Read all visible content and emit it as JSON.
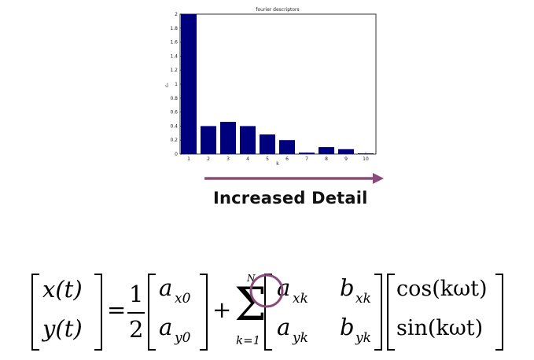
{
  "chart_data": {
    "type": "bar",
    "title": "fourier descriptors",
    "xlabel": "k",
    "ylabel": "cₖ",
    "categories": [
      "1",
      "2",
      "3",
      "4",
      "5",
      "6",
      "7",
      "8",
      "9",
      "10"
    ],
    "values": [
      2.0,
      0.4,
      0.46,
      0.4,
      0.28,
      0.2,
      0.02,
      0.1,
      0.07,
      0.01
    ],
    "ylim": [
      0,
      2
    ],
    "yticks": [
      "0",
      "0.2",
      "0.4",
      "0.6",
      "0.8",
      "1",
      "1.2",
      "1.4",
      "1.6",
      "1.8",
      "2"
    ],
    "bar_color": "#00007f",
    "grid": false
  },
  "arrow_color": "#8b4b7a",
  "caption": "Increased Detail",
  "equation": {
    "x_t": "x(t)",
    "y_t": "y(t)",
    "equals": "=",
    "half_num": "1",
    "half_den": "2",
    "a_x0": "a",
    "a_x0_sub": "x0",
    "a_y0": "a",
    "a_y0_sub": "y0",
    "plus": "+",
    "sum_upper": "N",
    "sum_lower": "k=1",
    "a_xk": "a",
    "a_xk_sub": "xk",
    "b_xk": "b",
    "b_xk_sub": "xk",
    "a_yk": "a",
    "a_yk_sub": "yk",
    "b_yk": "b",
    "b_yk_sub": "yk",
    "cos_term": "cos(kωt)",
    "sin_term": "sin(kωt)",
    "circle_color": "#8b4b7a"
  }
}
